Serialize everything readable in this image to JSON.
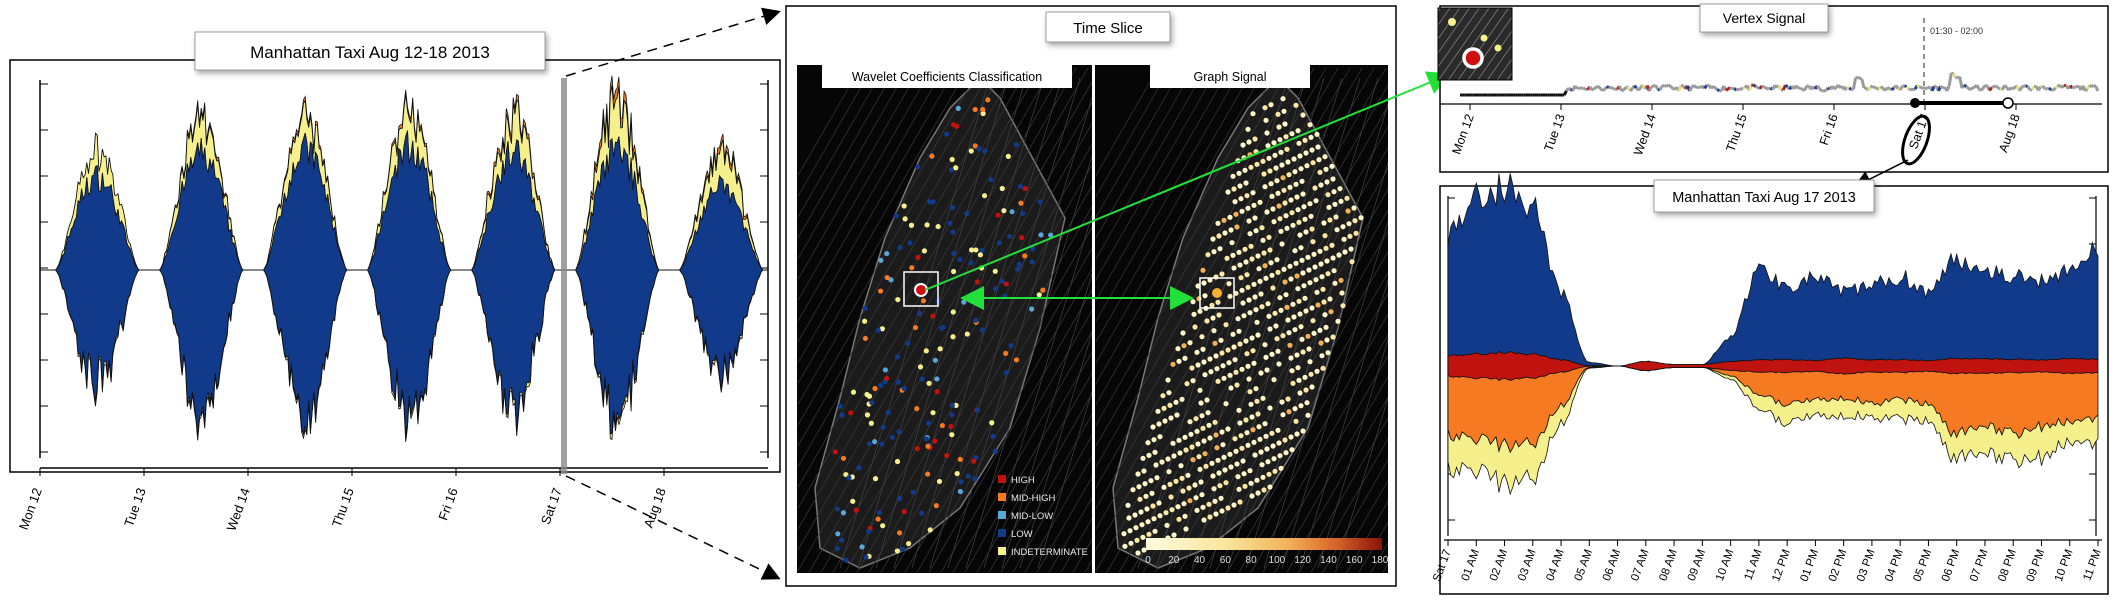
{
  "weekly": {
    "title": "Manhattan Taxi Aug 12-18 2013",
    "days": [
      "Mon 12",
      "Tue 13",
      "Wed 14",
      "Thu 15",
      "Fri 16",
      "Sat 17",
      "Aug 18"
    ]
  },
  "time_slice": {
    "title": "Time Slice",
    "left_title": "Wavelet Coefficients Classification",
    "right_title": "Graph Signal",
    "legend": [
      {
        "label": "HIGH",
        "color": "#c0120e"
      },
      {
        "label": "MID-HIGH",
        "color": "#f57a22"
      },
      {
        "label": "MID-LOW",
        "color": "#5aa6d6"
      },
      {
        "label": "LOW",
        "color": "#123a8a"
      },
      {
        "label": "INDETERMINATE",
        "color": "#f6f08c"
      }
    ],
    "colorbar_ticks": [
      "0",
      "20",
      "40",
      "60",
      "80",
      "100",
      "120",
      "140",
      "160",
      "180"
    ]
  },
  "vertex_signal": {
    "title": "Vertex Signal",
    "slice_label": "01:30 - 02:00",
    "days": [
      "Mon 12",
      "Tue 13",
      "Wed 14",
      "Thu 15",
      "Fri 16",
      "Sat 17",
      "Aug 18"
    ]
  },
  "daily": {
    "title": "Manhattan Taxi Aug 17 2013",
    "hours": [
      "Sat 17",
      "01 AM",
      "02 AM",
      "03 AM",
      "04 AM",
      "05 AM",
      "06 AM",
      "07 AM",
      "08 AM",
      "09 AM",
      "10 AM",
      "11 AM",
      "12 PM",
      "01 PM",
      "02 PM",
      "03 PM",
      "04 PM",
      "05 PM",
      "06 PM",
      "07 PM",
      "08 PM",
      "09 PM",
      "10 PM",
      "11 PM"
    ]
  },
  "chart_data": [
    {
      "type": "area",
      "title": "Manhattan Taxi Aug 12-18 2013",
      "categories": [
        "Mon 12",
        "Tue 13",
        "Wed 14",
        "Thu 15",
        "Fri 16",
        "Sat 17",
        "Aug 18"
      ],
      "series": [
        {
          "color": "#123a8a",
          "peaks": [
            0.62,
            0.77,
            0.8,
            0.82,
            0.78,
            0.8,
            0.55
          ]
        },
        {
          "color": "#f6f08c",
          "peaks": [
            0.25,
            0.3,
            0.28,
            0.32,
            0.35,
            0.42,
            0.3
          ]
        },
        {
          "color": "#f57a22",
          "peaks": [
            0.0,
            0.02,
            0.02,
            0.02,
            0.03,
            0.05,
            0.03
          ]
        }
      ],
      "grid": false
    },
    {
      "type": "line",
      "title": "Vertex Signal",
      "categories": [
        "Mon 12",
        "Tue 13",
        "Wed 14",
        "Thu 15",
        "Fri 16",
        "Sat 17",
        "Aug 18"
      ],
      "selection_range": [
        "Sat 17",
        "Aug 18"
      ],
      "grid": false
    },
    {
      "type": "area",
      "title": "Manhattan Taxi Aug 17 2013",
      "categories": [
        "Sat 17",
        "01 AM",
        "02 AM",
        "03 AM",
        "04 AM",
        "05 AM",
        "06 AM",
        "07 AM",
        "08 AM",
        "09 AM",
        "10 AM",
        "11 AM",
        "12 PM",
        "01 PM",
        "02 PM",
        "03 PM",
        "04 PM",
        "05 PM",
        "06 PM",
        "07 PM",
        "08 PM",
        "09 PM",
        "10 PM",
        "11 PM"
      ],
      "series": [
        {
          "color": "#123a8a",
          "values": [
            0.75,
            0.95,
            1.0,
            0.9,
            0.4,
            0.02,
            0.0,
            0.0,
            0.0,
            0.0,
            0.15,
            0.55,
            0.45,
            0.5,
            0.4,
            0.45,
            0.5,
            0.42,
            0.6,
            0.55,
            0.5,
            0.48,
            0.55,
            0.65
          ]
        },
        {
          "color": "#c0120e",
          "values": [
            0.35,
            0.4,
            0.45,
            0.4,
            0.2,
            0.01,
            0.0,
            0.15,
            0.05,
            0.05,
            0.15,
            0.2,
            0.22,
            0.18,
            0.25,
            0.2,
            0.22,
            0.18,
            0.25,
            0.25,
            0.22,
            0.2,
            0.25,
            0.22
          ]
        },
        {
          "color": "#f57a22",
          "values": [
            0.55,
            0.55,
            0.6,
            0.6,
            0.3,
            0.01,
            0.0,
            0.0,
            0.0,
            0.0,
            0.05,
            0.2,
            0.3,
            0.25,
            0.22,
            0.28,
            0.25,
            0.3,
            0.55,
            0.5,
            0.55,
            0.5,
            0.45,
            0.4
          ]
        },
        {
          "color": "#f6f08c",
          "values": [
            0.5,
            0.45,
            0.55,
            0.5,
            0.25,
            0.01,
            0.0,
            0.0,
            0.0,
            0.0,
            0.05,
            0.2,
            0.28,
            0.22,
            0.25,
            0.2,
            0.28,
            0.25,
            0.35,
            0.4,
            0.38,
            0.45,
            0.3,
            0.35
          ]
        }
      ],
      "grid": false
    }
  ]
}
